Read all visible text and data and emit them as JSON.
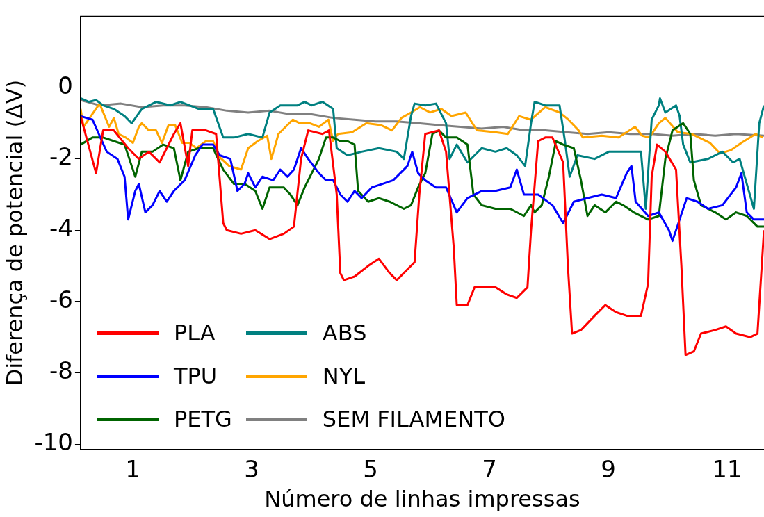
{
  "chart_data": {
    "type": "line",
    "xlabel": "Número de linhas impressas",
    "ylabel": "Diferença de potencial (ΔV)",
    "xlim": [
      0.12,
      11.62
    ],
    "ylim": [
      -10.15,
      2.0
    ],
    "xticks": [
      1,
      3,
      5,
      7,
      9,
      11
    ],
    "yticks": [
      0,
      -2,
      -4,
      -6,
      -8,
      -10
    ],
    "grid": false,
    "legend": "bottom left",
    "line_style": "solid",
    "series": [
      {
        "name": "PLA",
        "color": "#ff0000",
        "x": [
          0.12,
          0.38,
          0.5,
          0.68,
          0.92,
          1.1,
          1.27,
          1.45,
          1.69,
          1.8,
          1.93,
          2.0,
          2.23,
          2.4,
          2.52,
          2.58,
          2.82,
          3.06,
          3.3,
          3.54,
          3.71,
          3.83,
          3.95,
          4.19,
          4.3,
          4.43,
          4.49,
          4.55,
          4.73,
          4.96,
          5.14,
          5.32,
          5.44,
          5.68,
          5.74,
          5.82,
          5.92,
          6.15,
          6.27,
          6.4,
          6.45,
          6.63,
          6.75,
          7.1,
          7.29,
          7.46,
          7.64,
          7.7,
          7.82,
          7.94,
          8.06,
          8.24,
          8.32,
          8.39,
          8.54,
          8.77,
          8.95,
          9.13,
          9.31,
          9.55,
          9.67,
          9.73,
          9.82,
          9.96,
          10.14,
          10.23,
          10.3,
          10.44,
          10.56,
          10.8,
          10.98,
          11.15,
          11.39,
          11.51,
          11.62
        ],
        "values": [
          -0.8,
          -2.4,
          -1.2,
          -1.2,
          -1.7,
          -2.0,
          -1.8,
          -2.1,
          -1.3,
          -1.0,
          -2.2,
          -1.2,
          -1.2,
          -1.3,
          -3.8,
          -4.0,
          -4.1,
          -4.0,
          -4.25,
          -4.1,
          -3.9,
          -2.0,
          -1.2,
          -1.3,
          -1.2,
          -3.0,
          -5.2,
          -5.4,
          -5.3,
          -5.0,
          -4.8,
          -5.2,
          -5.4,
          -5.0,
          -4.9,
          -3.0,
          -1.3,
          -1.2,
          -1.8,
          -4.5,
          -6.1,
          -6.1,
          -5.6,
          -5.6,
          -5.8,
          -5.9,
          -5.6,
          -4.0,
          -1.5,
          -1.4,
          -1.4,
          -2.1,
          -5.0,
          -6.9,
          -6.8,
          -6.4,
          -6.1,
          -6.3,
          -6.4,
          -6.4,
          -5.5,
          -2.5,
          -1.6,
          -1.8,
          -2.3,
          -5.0,
          -7.5,
          -7.4,
          -6.9,
          -6.8,
          -6.7,
          -6.9,
          -7.0,
          -6.9,
          -4.0
        ]
      },
      {
        "name": "TPU",
        "color": "#0000ff",
        "x": [
          0.12,
          0.32,
          0.56,
          0.74,
          0.86,
          0.92,
          1.04,
          1.1,
          1.21,
          1.33,
          1.45,
          1.57,
          1.69,
          1.87,
          2.05,
          2.17,
          2.35,
          2.46,
          2.64,
          2.76,
          2.88,
          2.94,
          3.06,
          3.18,
          3.36,
          3.48,
          3.6,
          3.71,
          3.83,
          3.95,
          4.13,
          4.25,
          4.37,
          4.49,
          4.61,
          4.73,
          4.85,
          5.02,
          5.2,
          5.38,
          5.5,
          5.62,
          5.7,
          5.8,
          5.92,
          6.1,
          6.27,
          6.45,
          6.63,
          6.87,
          7.1,
          7.35,
          7.46,
          7.58,
          7.82,
          8.06,
          8.24,
          8.42,
          8.65,
          8.89,
          9.13,
          9.31,
          9.39,
          9.46,
          9.67,
          9.85,
          10.02,
          10.08,
          10.2,
          10.32,
          10.5,
          10.68,
          10.92,
          11.15,
          11.24,
          11.33,
          11.45,
          11.62
        ],
        "values": [
          -0.8,
          -0.9,
          -1.8,
          -2.0,
          -2.5,
          -3.7,
          -2.9,
          -2.7,
          -3.5,
          -3.3,
          -2.9,
          -3.2,
          -2.9,
          -2.6,
          -1.9,
          -1.6,
          -1.6,
          -1.9,
          -2.0,
          -2.9,
          -2.7,
          -2.4,
          -2.8,
          -2.5,
          -2.6,
          -2.3,
          -2.5,
          -2.3,
          -1.7,
          -2.0,
          -2.4,
          -2.6,
          -2.6,
          -3.0,
          -3.2,
          -2.9,
          -3.1,
          -2.8,
          -2.7,
          -2.6,
          -2.4,
          -2.2,
          -1.8,
          -2.4,
          -2.6,
          -2.8,
          -2.8,
          -3.5,
          -3.1,
          -2.9,
          -2.9,
          -2.8,
          -2.3,
          -3.0,
          -3.0,
          -3.3,
          -3.8,
          -3.2,
          -3.1,
          -3.0,
          -3.1,
          -2.4,
          -2.2,
          -3.2,
          -3.6,
          -3.5,
          -4.0,
          -4.3,
          -3.7,
          -3.1,
          -3.2,
          -3.4,
          -3.3,
          -2.8,
          -2.4,
          -3.5,
          -3.7,
          -3.7
        ]
      },
      {
        "name": "PETG",
        "color": "#006400",
        "x": [
          0.12,
          0.32,
          0.5,
          0.68,
          0.86,
          0.98,
          1.04,
          1.15,
          1.33,
          1.51,
          1.69,
          1.8,
          1.93,
          2.11,
          2.35,
          2.52,
          2.7,
          2.88,
          3.06,
          3.18,
          3.3,
          3.54,
          3.65,
          3.77,
          3.89,
          4.01,
          4.13,
          4.25,
          4.37,
          4.49,
          4.61,
          4.73,
          4.79,
          4.96,
          5.14,
          5.32,
          5.56,
          5.68,
          5.8,
          5.92,
          6.04,
          6.15,
          6.27,
          6.45,
          6.63,
          6.73,
          6.87,
          7.1,
          7.35,
          7.58,
          7.7,
          7.76,
          7.88,
          8.0,
          8.12,
          8.24,
          8.42,
          8.54,
          8.65,
          8.77,
          8.95,
          9.13,
          9.25,
          9.43,
          9.67,
          9.85,
          9.96,
          10.08,
          10.26,
          10.38,
          10.44,
          10.56,
          10.8,
          10.98,
          11.15,
          11.33,
          11.51,
          11.62
        ],
        "values": [
          -1.6,
          -1.4,
          -1.4,
          -1.5,
          -1.6,
          -2.2,
          -2.5,
          -1.8,
          -1.8,
          -1.6,
          -1.7,
          -2.6,
          -1.8,
          -1.7,
          -1.7,
          -2.3,
          -2.7,
          -2.7,
          -2.9,
          -3.4,
          -2.8,
          -2.8,
          -3.0,
          -3.3,
          -2.8,
          -2.4,
          -2.0,
          -1.4,
          -1.4,
          -1.5,
          -1.5,
          -1.6,
          -2.9,
          -3.2,
          -3.1,
          -3.2,
          -3.4,
          -3.3,
          -2.8,
          -2.4,
          -1.3,
          -1.2,
          -1.4,
          -1.4,
          -1.6,
          -3.0,
          -3.3,
          -3.4,
          -3.4,
          -3.6,
          -3.3,
          -3.5,
          -3.3,
          -2.5,
          -1.5,
          -1.6,
          -1.7,
          -2.6,
          -3.6,
          -3.3,
          -3.5,
          -3.2,
          -3.3,
          -3.5,
          -3.7,
          -3.6,
          -2.0,
          -1.2,
          -1.0,
          -1.3,
          -2.6,
          -3.3,
          -3.5,
          -3.7,
          -3.5,
          -3.6,
          -3.9,
          -3.9
        ]
      },
      {
        "name": "ABS",
        "color": "#008080",
        "x": [
          0.12,
          0.26,
          0.38,
          0.5,
          0.68,
          0.86,
          0.98,
          1.15,
          1.39,
          1.63,
          1.8,
          2.11,
          2.35,
          2.52,
          2.7,
          2.94,
          3.18,
          3.3,
          3.48,
          3.77,
          3.89,
          4.01,
          4.19,
          4.37,
          4.43,
          4.61,
          4.85,
          5.14,
          5.44,
          5.56,
          5.68,
          5.74,
          5.92,
          6.1,
          6.27,
          6.33,
          6.45,
          6.63,
          6.87,
          7.1,
          7.29,
          7.46,
          7.6,
          7.7,
          7.76,
          7.94,
          8.18,
          8.27,
          8.35,
          8.48,
          8.77,
          9.01,
          9.37,
          9.55,
          9.63,
          9.73,
          9.85,
          9.87,
          9.96,
          10.14,
          10.2,
          10.26,
          10.38,
          10.68,
          10.92,
          11.1,
          11.21,
          11.45,
          11.54,
          11.62
        ],
        "values": [
          -0.3,
          -0.4,
          -0.35,
          -0.5,
          -0.6,
          -0.8,
          -1.0,
          -0.6,
          -0.4,
          -0.5,
          -0.4,
          -0.6,
          -0.6,
          -1.4,
          -1.4,
          -1.3,
          -1.4,
          -0.7,
          -0.5,
          -0.5,
          -0.4,
          -0.5,
          -0.4,
          -0.6,
          -1.7,
          -1.9,
          -1.8,
          -1.7,
          -1.8,
          -2.0,
          -0.8,
          -0.45,
          -0.5,
          -0.45,
          -1.0,
          -2.0,
          -1.6,
          -2.1,
          -1.7,
          -1.8,
          -1.7,
          -1.9,
          -2.2,
          -1.0,
          -0.4,
          -0.5,
          -0.5,
          -1.5,
          -2.5,
          -1.9,
          -2.0,
          -1.8,
          -1.8,
          -1.8,
          -3.4,
          -0.9,
          -0.5,
          -0.3,
          -0.7,
          -0.5,
          -0.8,
          -1.6,
          -2.1,
          -2.0,
          -1.8,
          -2.1,
          -2.0,
          -3.4,
          -1.0,
          -0.5
        ]
      },
      {
        "name": "NYL",
        "color": "#ffa500",
        "x": [
          0.12,
          0.17,
          0.44,
          0.6,
          0.68,
          0.76,
          0.88,
          1.0,
          1.1,
          1.15,
          1.27,
          1.39,
          1.49,
          1.6,
          1.71,
          1.83,
          1.95,
          2.07,
          2.23,
          2.35,
          2.46,
          2.62,
          2.82,
          2.94,
          3.1,
          3.26,
          3.33,
          3.45,
          3.57,
          3.69,
          3.81,
          3.98,
          4.13,
          4.29,
          4.37,
          4.45,
          4.69,
          4.93,
          5.17,
          5.36,
          5.52,
          5.68,
          5.83,
          6.0,
          6.19,
          6.36,
          6.6,
          6.79,
          7.1,
          7.31,
          7.5,
          7.7,
          7.94,
          8.18,
          8.33,
          8.5,
          8.57,
          8.89,
          9.17,
          9.45,
          9.57,
          9.69,
          9.85,
          9.96,
          10.17,
          10.4,
          10.71,
          10.88,
          11.07,
          11.24,
          11.48,
          11.6
        ],
        "values": [
          -0.6,
          -1.1,
          -0.45,
          -1.1,
          -0.85,
          -1.3,
          -1.4,
          -1.55,
          -1.1,
          -1.0,
          -1.2,
          -1.2,
          -1.55,
          -1.05,
          -1.05,
          -1.55,
          -1.55,
          -1.7,
          -1.5,
          -1.5,
          -1.95,
          -2.2,
          -2.3,
          -1.7,
          -1.5,
          -1.35,
          -2.0,
          -1.3,
          -1.1,
          -0.9,
          -1.0,
          -1.0,
          -1.1,
          -0.9,
          -1.5,
          -1.3,
          -1.25,
          -1.0,
          -1.05,
          -1.2,
          -0.85,
          -0.7,
          -0.55,
          -0.7,
          -0.6,
          -0.8,
          -0.7,
          -1.2,
          -1.25,
          -1.3,
          -0.8,
          -0.9,
          -0.55,
          -0.7,
          -0.9,
          -1.2,
          -1.4,
          -1.35,
          -1.4,
          -1.1,
          -1.35,
          -1.4,
          -1.0,
          -0.85,
          -1.25,
          -1.3,
          -1.55,
          -1.85,
          -1.75,
          -1.55,
          -1.3,
          -1.4
        ]
      },
      {
        "name": "SEM FILAMENTO",
        "color": "#808080",
        "x": [
          0.12,
          0.44,
          0.8,
          1.15,
          1.51,
          1.87,
          2.23,
          2.58,
          2.94,
          3.3,
          3.65,
          4.01,
          4.37,
          4.73,
          5.08,
          5.44,
          5.8,
          6.15,
          6.51,
          6.87,
          7.23,
          7.58,
          7.94,
          8.3,
          8.65,
          9.01,
          9.37,
          9.73,
          10.08,
          10.44,
          10.8,
          11.15,
          11.62
        ],
        "values": [
          -0.35,
          -0.5,
          -0.45,
          -0.55,
          -0.5,
          -0.5,
          -0.55,
          -0.65,
          -0.7,
          -0.65,
          -0.75,
          -0.75,
          -0.85,
          -0.9,
          -0.95,
          -0.95,
          -1.0,
          -1.05,
          -1.1,
          -1.15,
          -1.1,
          -1.2,
          -1.2,
          -1.25,
          -1.3,
          -1.25,
          -1.3,
          -1.3,
          -1.35,
          -1.3,
          -1.35,
          -1.3,
          -1.35
        ]
      }
    ]
  }
}
